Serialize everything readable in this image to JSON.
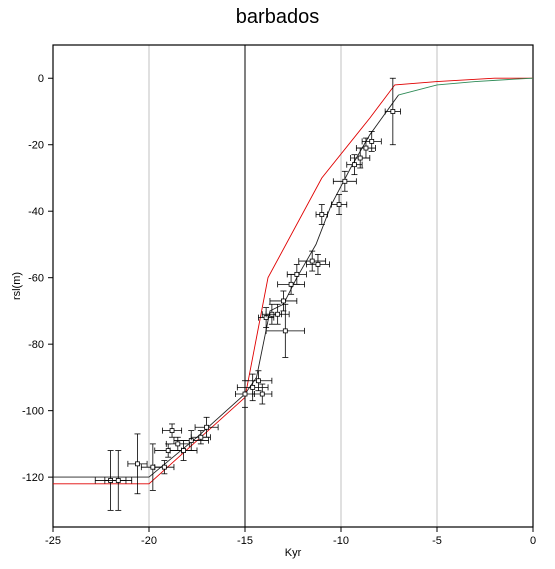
{
  "chart_data": {
    "type": "scatter",
    "title": "barbados",
    "xlabel": "Kyr",
    "ylabel": "rsl(m)",
    "xlim": [
      -25,
      0
    ],
    "ylim": [
      -135,
      10
    ],
    "x_ticks": [
      -25,
      -20,
      -15,
      -10,
      -5,
      0
    ],
    "x_tick_labels": [
      "-25",
      "-20",
      "-15",
      "-10",
      "-5",
      "0"
    ],
    "y_ticks": [
      0,
      -20,
      -40,
      -60,
      -80,
      -100,
      -120
    ],
    "y_tick_labels": [
      "0",
      "-20",
      "-40",
      "-60",
      "-80",
      "-100",
      "-120"
    ],
    "grid": "vertical",
    "colors": {
      "model_red": "#e00000",
      "model_dark": "#222222",
      "model_green": "#2e8b57",
      "points": "#000000",
      "grid": "#999999"
    },
    "series": [
      {
        "style": "line",
        "color": "#e00000",
        "x": [
          -25,
          -20,
          -15,
          -13.8,
          -11,
          -8.5,
          -7.2,
          -5,
          -2,
          0
        ],
        "y": [
          -122,
          -122,
          -96,
          -60,
          -30,
          -12,
          -2,
          -1,
          0,
          0
        ]
      },
      {
        "style": "line",
        "color": "#222222",
        "x": [
          -25,
          -20,
          -17.5,
          -15,
          -14.4,
          -13.7,
          -13,
          -12.3,
          -11.3,
          -10.5,
          -9.5,
          -8.5,
          -7.5,
          -7
        ],
        "y": [
          -120,
          -120,
          -108,
          -95,
          -90,
          -70,
          -68,
          -60,
          -50,
          -38,
          -27,
          -17,
          -9,
          -5
        ]
      },
      {
        "style": "line",
        "color": "#2e8b57",
        "x": [
          -7,
          -5,
          -3,
          -1,
          0
        ],
        "y": [
          -5,
          -2,
          -1,
          -0.3,
          0
        ]
      },
      {
        "style": "points",
        "color": "#000000",
        "points": [
          {
            "x": -22,
            "y": -121,
            "xerr": 0.8,
            "yerr": 9
          },
          {
            "x": -21.6,
            "y": -121,
            "xerr": 0.7,
            "yerr": 9
          },
          {
            "x": -20.6,
            "y": -116,
            "xerr": 0.5,
            "yerr": 9
          },
          {
            "x": -19.8,
            "y": -117,
            "xerr": 0.6,
            "yerr": 7
          },
          {
            "x": -19.2,
            "y": -117,
            "xerr": 0.5,
            "yerr": 2
          },
          {
            "x": -19,
            "y": -112,
            "xerr": 0.7,
            "yerr": 2
          },
          {
            "x": -18.8,
            "y": -106,
            "xerr": 0.5,
            "yerr": 2
          },
          {
            "x": -18.5,
            "y": -110,
            "xerr": 0.6,
            "yerr": 2
          },
          {
            "x": -18.2,
            "y": -112,
            "xerr": 0.7,
            "yerr": 3
          },
          {
            "x": -17.8,
            "y": -109,
            "xerr": 0.9,
            "yerr": 3
          },
          {
            "x": -17.3,
            "y": -108,
            "xerr": 0.5,
            "yerr": 2
          },
          {
            "x": -17,
            "y": -105,
            "xerr": 0.6,
            "yerr": 3
          },
          {
            "x": -15,
            "y": -95,
            "xerr": 0.5,
            "yerr": 4
          },
          {
            "x": -14.6,
            "y": -93,
            "xerr": 0.8,
            "yerr": 4
          },
          {
            "x": -14.3,
            "y": -91,
            "xerr": 0.7,
            "yerr": 3
          },
          {
            "x": -14.1,
            "y": -95,
            "xerr": 0.5,
            "yerr": 3
          },
          {
            "x": -13.9,
            "y": -72,
            "xerr": 0.4,
            "yerr": 3
          },
          {
            "x": -13.6,
            "y": -71,
            "xerr": 0.5,
            "yerr": 3
          },
          {
            "x": -13.3,
            "y": -71,
            "xerr": 0.6,
            "yerr": 3
          },
          {
            "x": -13,
            "y": -67,
            "xerr": 0.7,
            "yerr": 3
          },
          {
            "x": -12.9,
            "y": -76,
            "xerr": 1,
            "yerr": 8
          },
          {
            "x": -12.6,
            "y": -62,
            "xerr": 0.7,
            "yerr": 3
          },
          {
            "x": -12.3,
            "y": -59,
            "xerr": 0.5,
            "yerr": 3
          },
          {
            "x": -11.5,
            "y": -55,
            "xerr": 0.7,
            "yerr": 3
          },
          {
            "x": -11.2,
            "y": -56,
            "xerr": 0.6,
            "yerr": 3
          },
          {
            "x": -11,
            "y": -41,
            "xerr": 0.3,
            "yerr": 3
          },
          {
            "x": -10.1,
            "y": -38,
            "xerr": 0.4,
            "yerr": 3
          },
          {
            "x": -9.8,
            "y": -31,
            "xerr": 0.6,
            "yerr": 3
          },
          {
            "x": -9.3,
            "y": -26,
            "xerr": 0.4,
            "yerr": 3
          },
          {
            "x": -9,
            "y": -24,
            "xerr": 0.5,
            "yerr": 3
          },
          {
            "x": -8.7,
            "y": -21,
            "xerr": 0.5,
            "yerr": 3
          },
          {
            "x": -8.4,
            "y": -19,
            "xerr": 0.5,
            "yerr": 3
          },
          {
            "x": -7.3,
            "y": -10,
            "xerr": 0.4,
            "yerr": 10
          }
        ]
      }
    ]
  }
}
